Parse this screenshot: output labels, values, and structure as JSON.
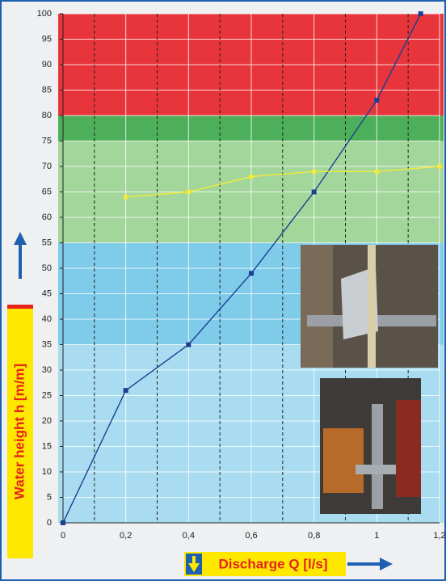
{
  "chart_data": {
    "type": "line",
    "xlabel": "Discharge Q [l/s]",
    "ylabel": "Water height h [m/m]",
    "xlim": [
      0,
      1.2
    ],
    "ylim": [
      0,
      100
    ],
    "xticks": [
      0,
      {
        "value": 0.2,
        "label": "0,2"
      },
      {
        "value": 0.4,
        "label": "0,4"
      },
      {
        "value": 0.6,
        "label": "0,6"
      },
      {
        "value": 0.8,
        "label": "0,8"
      },
      1,
      {
        "value": 1.2,
        "label": "1,2"
      }
    ],
    "xminor": [
      0.1,
      0.3,
      0.5,
      0.7,
      0.9,
      1.1
    ],
    "yticks": [
      0,
      5,
      10,
      15,
      20,
      25,
      30,
      35,
      40,
      45,
      50,
      55,
      60,
      65,
      70,
      75,
      80,
      85,
      90,
      95,
      100
    ],
    "zones": [
      {
        "from": 0,
        "to": 35,
        "color": "#a9dcf0"
      },
      {
        "from": 35,
        "to": 55,
        "color": "#7fcbea"
      },
      {
        "from": 55,
        "to": 75,
        "color": "#a3d69b"
      },
      {
        "from": 75,
        "to": 80,
        "color": "#4eaf5a"
      },
      {
        "from": 80,
        "to": 100,
        "color": "#e8353b"
      }
    ],
    "series": [
      {
        "color": "#1a3f93",
        "x": [
          0,
          0.2,
          0.4,
          0.6,
          0.8,
          1.0,
          1.14
        ],
        "values": [
          0,
          26,
          35,
          49,
          65,
          83,
          100
        ]
      },
      {
        "color": "#f2ea3c",
        "x": [
          0.2,
          0.4,
          0.6,
          0.8,
          1.0,
          1.2
        ],
        "values": [
          64,
          65,
          68,
          69,
          69,
          70
        ]
      }
    ]
  }
}
